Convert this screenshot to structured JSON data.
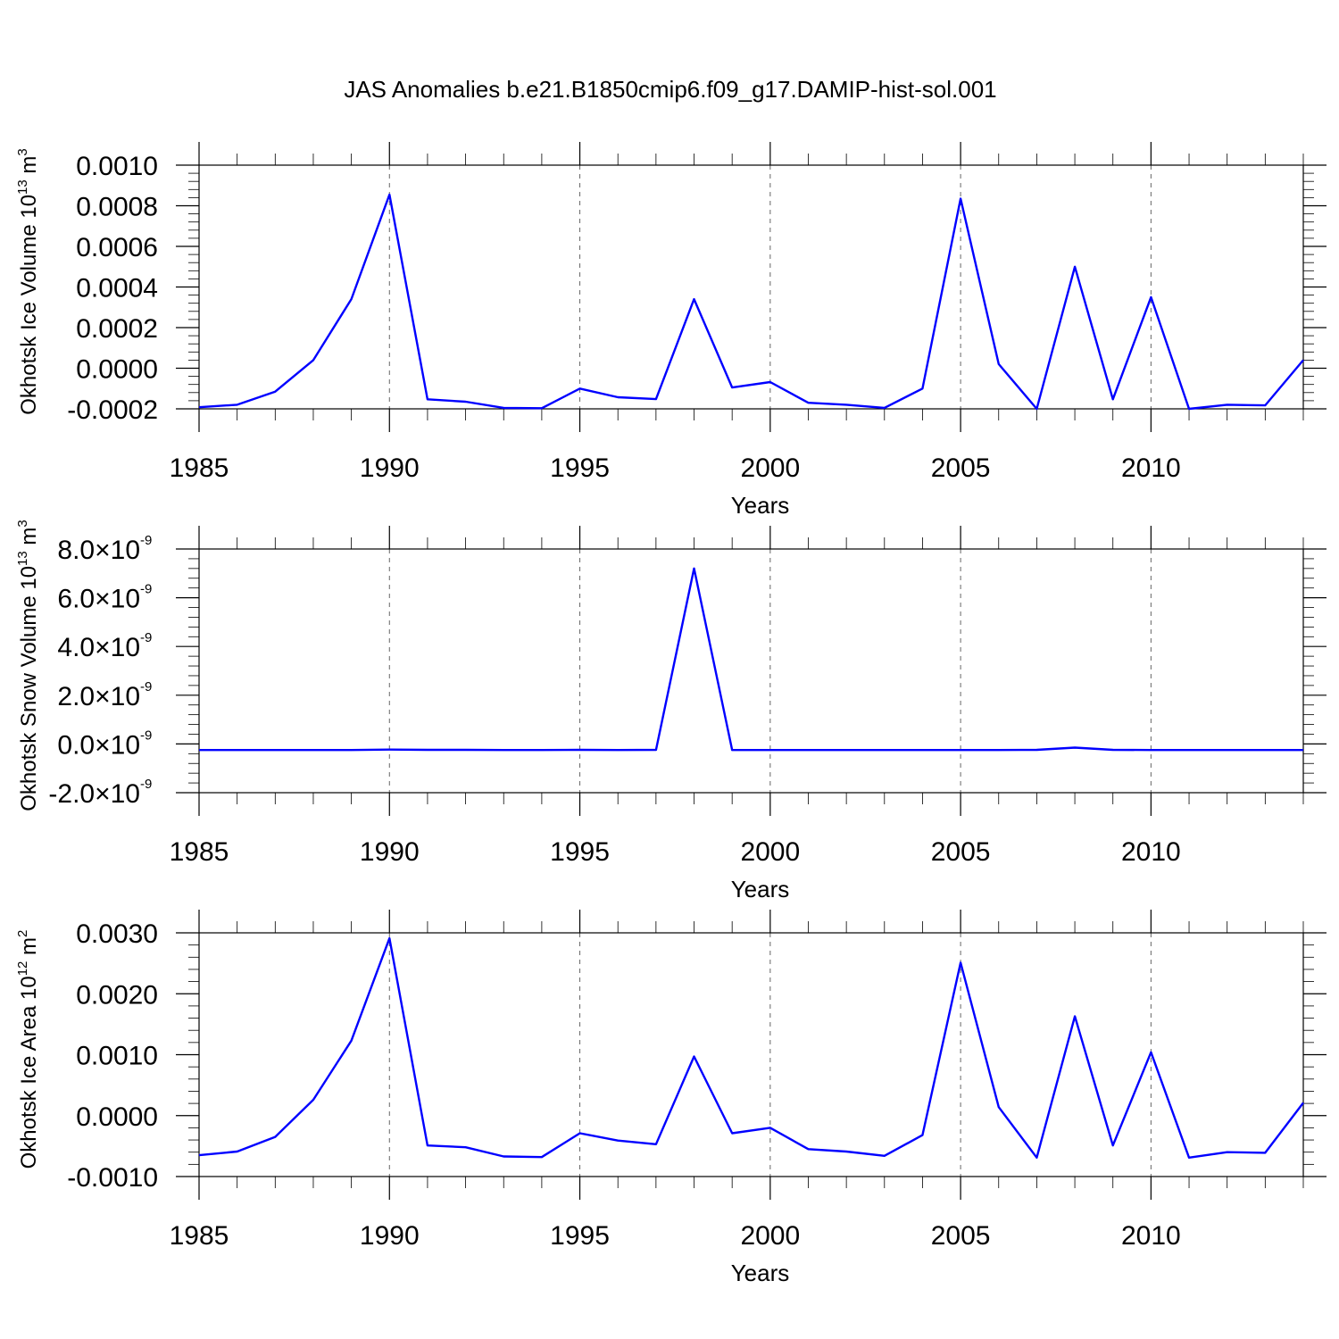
{
  "figure_title": "JAS Anomalies b.e21.B1850cmip6.f09_g17.DAMIP-hist-sol.001",
  "colors": {
    "series": "#0000ff",
    "grid": "#666666"
  },
  "chart_data": [
    {
      "type": "line",
      "xlabel": "Years",
      "ylabel": {
        "text": "Okhotsk Ice Volume 10",
        "sup": "13",
        "unit": " m",
        "unit_sup": "3"
      },
      "xlim": [
        1985,
        2014
      ],
      "ylim": [
        -0.0002,
        0.001
      ],
      "x_ticks": [
        1985,
        1990,
        1995,
        2000,
        2005,
        2010
      ],
      "x_tick_labels": [
        "1985",
        "1990",
        "1995",
        "2000",
        "2005",
        "2010"
      ],
      "y_ticks": [
        -0.0002,
        0.0,
        0.0002,
        0.0004,
        0.0006,
        0.0008,
        0.001
      ],
      "y_tick_labels": [
        "-0.0002",
        "0.0000",
        "0.0002",
        "0.0004",
        "0.0006",
        "0.0008",
        "0.0010"
      ],
      "y_tick_format": "plain",
      "grid": "vertical dashed at major x ticks",
      "x": [
        1985,
        1986,
        1987,
        1988,
        1989,
        1990,
        1991,
        1992,
        1993,
        1994,
        1995,
        1996,
        1997,
        1998,
        1999,
        2000,
        2001,
        2002,
        2003,
        2004,
        2005,
        2006,
        2007,
        2008,
        2009,
        2010,
        2011,
        2012,
        2013,
        2014
      ],
      "series": [
        {
          "values": [
            -0.000192,
            -0.00018,
            -0.000115,
            4e-05,
            0.00034,
            0.000855,
            -0.000153,
            -0.000165,
            -0.000195,
            -0.000197,
            -0.0001,
            -0.000143,
            -0.000152,
            0.00034,
            -9.5e-05,
            -6.8e-05,
            -0.00017,
            -0.00018,
            -0.000195,
            -0.0001,
            0.000835,
            2e-05,
            -0.0002,
            0.0005,
            -0.000153,
            0.00035,
            -0.0002,
            -0.00018,
            -0.000183,
            4e-05
          ]
        }
      ]
    },
    {
      "type": "line",
      "xlabel": "Years",
      "ylabel": {
        "text": "Okhotsk Snow Volume 10",
        "sup": "13",
        "unit": " m",
        "unit_sup": "3"
      },
      "xlim": [
        1985,
        2014
      ],
      "ylim": [
        -2e-09,
        8e-09
      ],
      "x_ticks": [
        1985,
        1990,
        1995,
        2000,
        2005,
        2010
      ],
      "x_tick_labels": [
        "1985",
        "1990",
        "1995",
        "2000",
        "2005",
        "2010"
      ],
      "y_ticks": [
        -2e-09,
        0.0,
        2e-09,
        4e-09,
        6e-09,
        8e-09
      ],
      "y_tick_mantissas": [
        "-2.0",
        "0.0",
        "2.0",
        "4.0",
        "6.0",
        "8.0"
      ],
      "y_tick_times": "×10",
      "y_tick_exponent": "-9",
      "y_tick_format": "sci",
      "grid": "vertical dashed at major x ticks",
      "x": [
        1985,
        1986,
        1987,
        1988,
        1989,
        1990,
        1991,
        1992,
        1993,
        1994,
        1995,
        1996,
        1997,
        1998,
        1999,
        2000,
        2001,
        2002,
        2003,
        2004,
        2005,
        2006,
        2007,
        2008,
        2009,
        2010,
        2011,
        2012,
        2013,
        2014
      ],
      "series": [
        {
          "values": [
            -2.5e-10,
            -2.5e-10,
            -2.5e-10,
            -2.5e-10,
            -2.5e-10,
            -2.3e-10,
            -2.4e-10,
            -2.4e-10,
            -2.5e-10,
            -2.5e-10,
            -2.4e-10,
            -2.5e-10,
            -2.4e-10,
            7.2e-09,
            -2.5e-10,
            -2.5e-10,
            -2.5e-10,
            -2.5e-10,
            -2.5e-10,
            -2.5e-10,
            -2.5e-10,
            -2.5e-10,
            -2.4e-10,
            -1.5e-10,
            -2.4e-10,
            -2.5e-10,
            -2.5e-10,
            -2.5e-10,
            -2.5e-10,
            -2.5e-10
          ]
        }
      ]
    },
    {
      "type": "line",
      "xlabel": "Years",
      "ylabel": {
        "text": "Okhotsk Ice Area 10",
        "sup": "12",
        "unit": " m",
        "unit_sup": "2"
      },
      "xlim": [
        1985,
        2014
      ],
      "ylim": [
        -0.001,
        0.003
      ],
      "x_ticks": [
        1985,
        1990,
        1995,
        2000,
        2005,
        2010
      ],
      "x_tick_labels": [
        "1985",
        "1990",
        "1995",
        "2000",
        "2005",
        "2010"
      ],
      "y_ticks": [
        -0.001,
        0.0,
        0.001,
        0.002,
        0.003
      ],
      "y_tick_labels": [
        "-0.0010",
        "0.0000",
        "0.0010",
        "0.0020",
        "0.0030"
      ],
      "y_tick_format": "plain",
      "grid": "vertical dashed at major x ticks",
      "x": [
        1985,
        1986,
        1987,
        1988,
        1989,
        1990,
        1991,
        1992,
        1993,
        1994,
        1995,
        1996,
        1997,
        1998,
        1999,
        2000,
        2001,
        2002,
        2003,
        2004,
        2005,
        2006,
        2007,
        2008,
        2009,
        2010,
        2011,
        2012,
        2013,
        2014
      ],
      "series": [
        {
          "values": [
            -0.00065,
            -0.00059,
            -0.00035,
            0.00026,
            0.00123,
            0.00291,
            -0.00049,
            -0.00052,
            -0.00067,
            -0.00068,
            -0.00029,
            -0.00041,
            -0.00047,
            0.00097,
            -0.00029,
            -0.0002,
            -0.00055,
            -0.00059,
            -0.00066,
            -0.00032,
            0.00251,
            0.00014,
            -0.00069,
            0.00163,
            -0.00049,
            0.00104,
            -0.00069,
            -0.0006,
            -0.00061,
            0.00021
          ]
        }
      ]
    }
  ]
}
